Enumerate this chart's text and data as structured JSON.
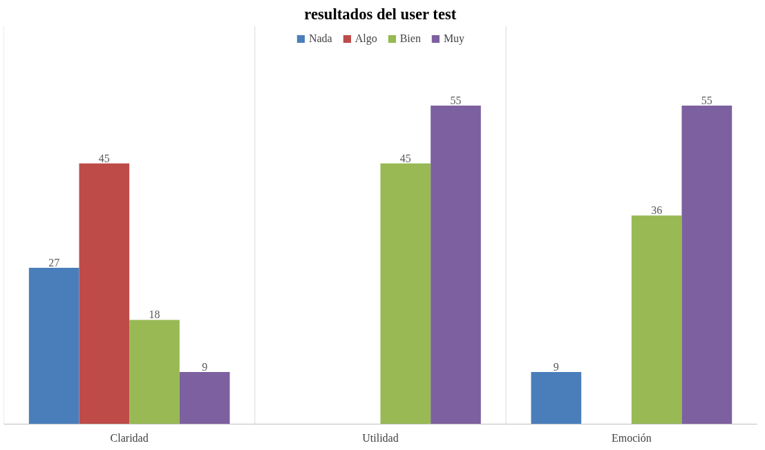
{
  "chart_data": {
    "type": "bar",
    "title": "resultados del user test",
    "categories": [
      "Claridad",
      "Utilidad",
      "Emoción"
    ],
    "series": [
      {
        "name": "Nada",
        "color": "#4a7ebb",
        "values": [
          27,
          null,
          9
        ]
      },
      {
        "name": "Algo",
        "color": "#be4b48",
        "values": [
          45,
          null,
          null
        ]
      },
      {
        "name": "Bien",
        "color": "#98b954",
        "values": [
          18,
          45,
          36
        ]
      },
      {
        "name": "Muy",
        "color": "#7d60a0",
        "values": [
          9,
          55,
          55
        ]
      }
    ],
    "data_labels": true,
    "grid": "x",
    "legend": "top"
  }
}
